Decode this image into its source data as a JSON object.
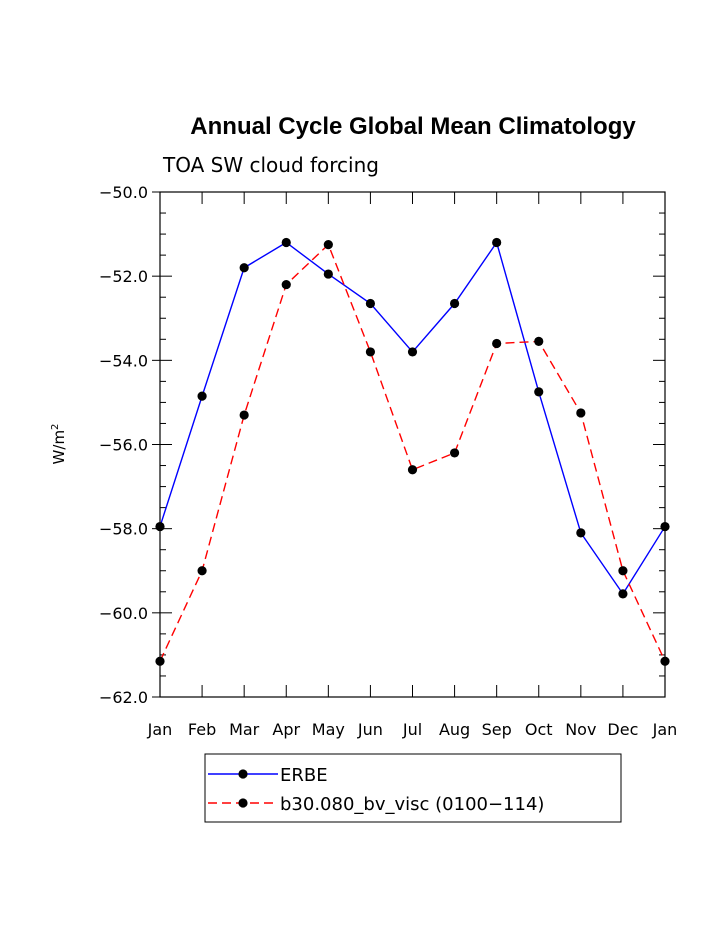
{
  "chart_data": {
    "type": "line",
    "title": "Annual Cycle Global Mean Climatology",
    "subtitle": "TOA SW cloud forcing",
    "ylabel": "W/m",
    "ylabel_superscript": "2",
    "xlabel": "",
    "categories": [
      "Jan",
      "Feb",
      "Mar",
      "Apr",
      "May",
      "Jun",
      "Jul",
      "Aug",
      "Sep",
      "Oct",
      "Nov",
      "Dec",
      "Jan"
    ],
    "ylim": [
      -62.0,
      -50.0
    ],
    "yticks": [
      "-62.0",
      "-60.0",
      "-58.0",
      "-56.0",
      "-54.0",
      "-52.0",
      "-50.0"
    ],
    "grid": false,
    "legend_position": "bottom",
    "series": [
      {
        "name": "ERBE",
        "color": "#0000ff",
        "dash": "solid",
        "marker": "filled-circle",
        "values": [
          -57.95,
          -54.85,
          -51.8,
          -51.2,
          -51.95,
          -52.65,
          -53.8,
          -52.65,
          -51.2,
          -54.75,
          -58.1,
          -59.55,
          -57.95
        ]
      },
      {
        "name": "b30.080_bv_visc (0100−114)",
        "color": "#ff0000",
        "dash": "dashed",
        "marker": "filled-circle",
        "values": [
          -61.15,
          -59.0,
          -55.3,
          -52.2,
          -51.25,
          -53.8,
          -56.6,
          -56.2,
          -53.6,
          -53.55,
          -55.25,
          -59.0,
          -61.15
        ]
      }
    ]
  }
}
